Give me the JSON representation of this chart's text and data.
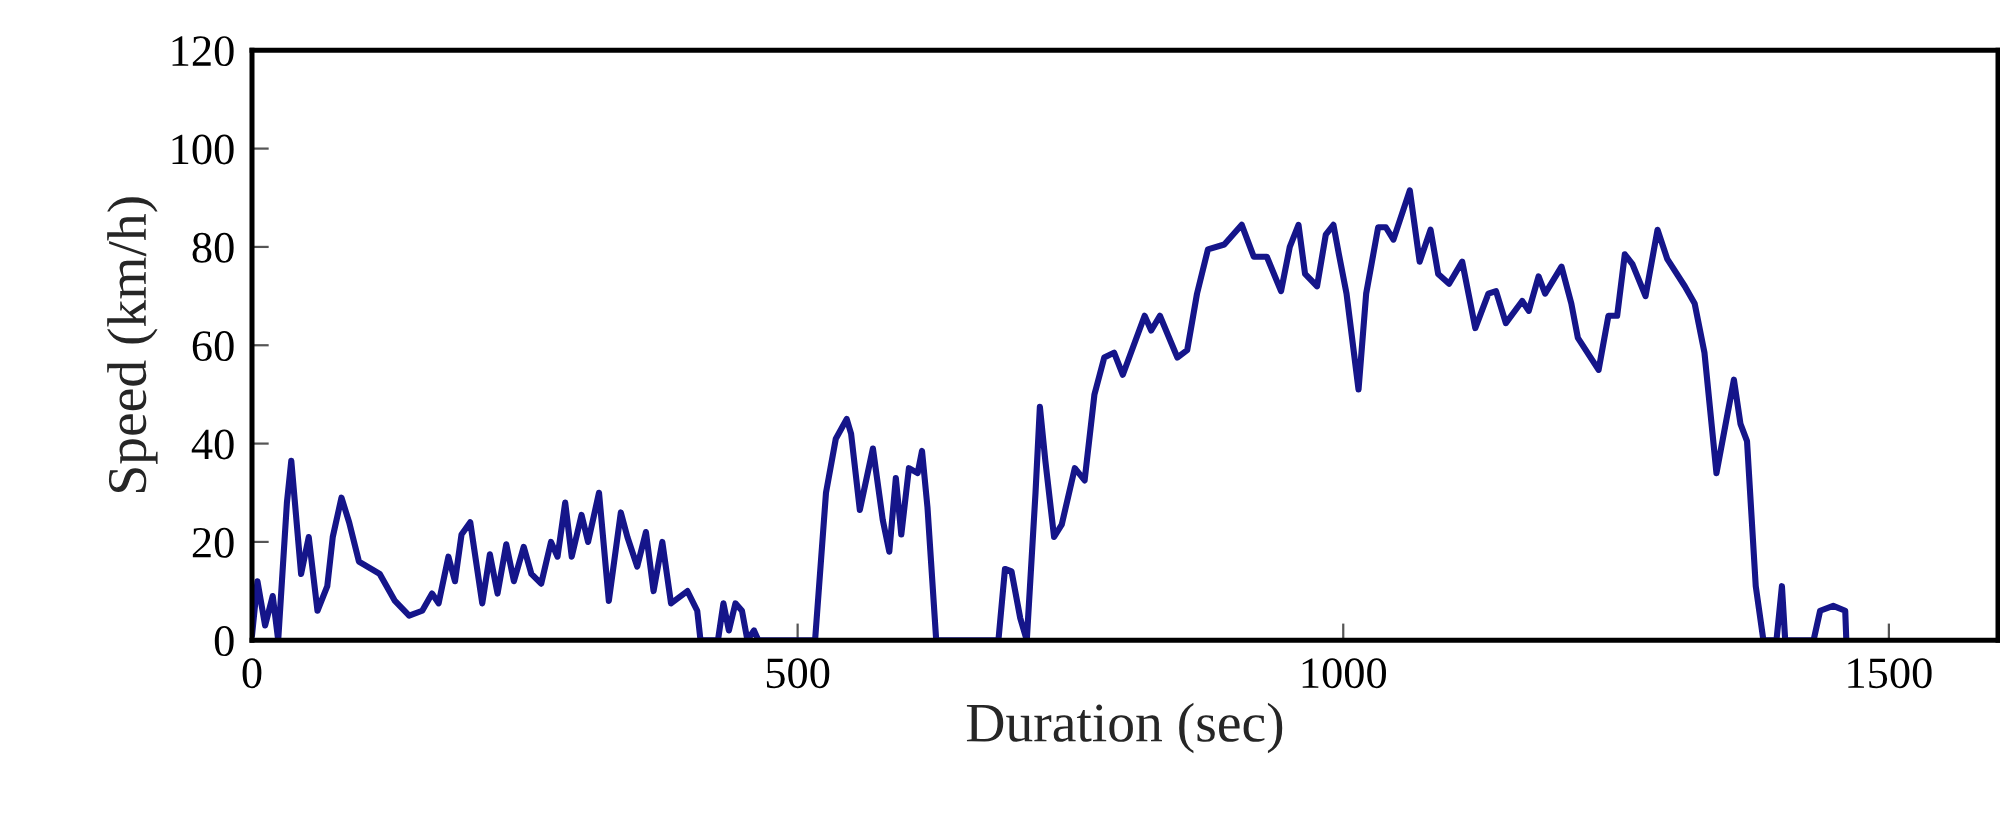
{
  "chart_data": {
    "type": "line",
    "xlabel": "Duration (sec)",
    "ylabel": "Speed (km/h)",
    "xlim": [
      0,
      1600
    ],
    "xticks": [
      0,
      500,
      1000,
      1500
    ],
    "ylim": [
      0,
      120
    ],
    "yticks": [
      0,
      20,
      40,
      60,
      80,
      100,
      120
    ],
    "grid": false,
    "legend": false,
    "series": [
      {
        "color": "#15158a",
        "x": [
          0,
          5,
          12,
          19,
          24,
          32,
          36,
          45,
          52,
          60,
          69,
          74,
          82,
          89,
          98,
          117,
          131,
          144,
          156,
          165,
          171,
          180,
          186,
          192,
          200,
          211,
          218,
          225,
          233,
          240,
          249,
          256,
          265,
          274,
          280,
          287,
          293,
          302,
          308,
          318,
          327,
          338,
          344,
          353,
          361,
          368,
          376,
          384,
          399,
          408,
          411,
          427,
          432,
          437,
          443,
          449,
          454,
          460,
          464,
          516,
          526,
          535,
          545,
          549,
          557,
          569,
          578,
          584,
          590,
          595,
          602,
          610,
          614,
          619,
          627,
          684,
          690,
          696,
          704,
          710,
          718,
          722,
          727,
          735,
          742,
          754,
          763,
          772,
          781,
          790,
          798,
          818,
          824,
          832,
          848,
          857,
          866,
          876,
          891,
          907,
          918,
          930,
          943,
          951,
          959,
          965,
          976,
          984,
          991,
          996,
          1003,
          1014,
          1021,
          1032,
          1039,
          1046,
          1061,
          1070,
          1080,
          1087,
          1097,
          1109,
          1121,
          1133,
          1140,
          1149,
          1164,
          1170,
          1179,
          1185,
          1200,
          1209,
          1215,
          1234,
          1243,
          1251,
          1258,
          1265,
          1277,
          1288,
          1297,
          1313,
          1322,
          1331,
          1342,
          1350,
          1358,
          1364,
          1370,
          1378,
          1385,
          1397,
          1402,
          1405,
          1431,
          1437,
          1449,
          1460,
          1461
        ],
        "values": [
          1,
          12,
          3,
          9,
          0,
          28,
          36.5,
          13.5,
          21,
          6,
          11,
          21,
          29,
          24,
          16,
          13.5,
          8,
          5,
          6,
          9.5,
          7.5,
          17,
          12,
          21.5,
          24,
          7.5,
          17.5,
          9.5,
          19.5,
          12,
          19,
          13.5,
          11.5,
          20,
          17,
          28,
          17,
          25.5,
          20,
          30,
          8,
          26,
          21,
          15,
          22,
          10,
          20,
          7.5,
          10,
          6,
          0,
          0,
          7.5,
          2,
          7.5,
          6,
          0,
          2,
          0,
          0,
          30,
          41,
          45,
          42,
          26.5,
          39,
          24.5,
          18,
          33,
          21.5,
          35,
          34,
          38.5,
          27,
          0,
          0,
          14.5,
          14,
          4.5,
          0,
          30,
          47.5,
          36.5,
          21,
          23.5,
          35,
          32.5,
          50,
          57.5,
          58.5,
          54,
          66,
          63,
          66,
          57.5,
          59,
          70.5,
          79.5,
          80.5,
          84.5,
          78,
          78,
          71,
          80,
          84.5,
          74.5,
          72,
          82.5,
          84.5,
          78.5,
          70.5,
          51,
          70.5,
          84,
          84,
          81.5,
          91.5,
          77,
          83.5,
          74.5,
          72.5,
          77,
          63.5,
          70.5,
          71,
          64.5,
          69,
          67,
          74,
          70.5,
          76,
          68.5,
          61.5,
          55,
          66,
          66,
          78.5,
          76.5,
          70,
          83.5,
          77.5,
          72,
          68.5,
          58.5,
          34,
          43.5,
          53,
          44,
          40.5,
          11,
          0,
          0,
          11,
          0,
          0,
          6,
          7,
          6,
          0
        ]
      }
    ]
  }
}
